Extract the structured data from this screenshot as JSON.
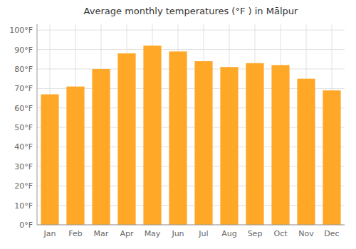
{
  "chart_data": {
    "type": "bar",
    "title": "Average monthly temperatures (°F ) in Mālpur",
    "categories": [
      "Jan",
      "Feb",
      "Mar",
      "Apr",
      "May",
      "Jun",
      "Jul",
      "Aug",
      "Sep",
      "Oct",
      "Nov",
      "Dec"
    ],
    "values": [
      67,
      71,
      80,
      88,
      92,
      89,
      84,
      81,
      83,
      82,
      75,
      69
    ],
    "color": "#FFA726",
    "ylim": [
      0,
      103
    ],
    "yticks": [
      {
        "value": 0,
        "label": "0°F"
      },
      {
        "value": 10,
        "label": "10°F"
      },
      {
        "value": 20,
        "label": "20°F"
      },
      {
        "value": 30,
        "label": "30°F"
      },
      {
        "value": 40,
        "label": "40°F"
      },
      {
        "value": 50,
        "label": "50°F"
      },
      {
        "value": 60,
        "label": "60°F"
      },
      {
        "value": 70,
        "label": "70°F"
      },
      {
        "value": 80,
        "label": "80°F"
      },
      {
        "value": 90,
        "label": "90°F"
      },
      {
        "value": 100,
        "label": "100°F"
      }
    ],
    "grid": true
  }
}
